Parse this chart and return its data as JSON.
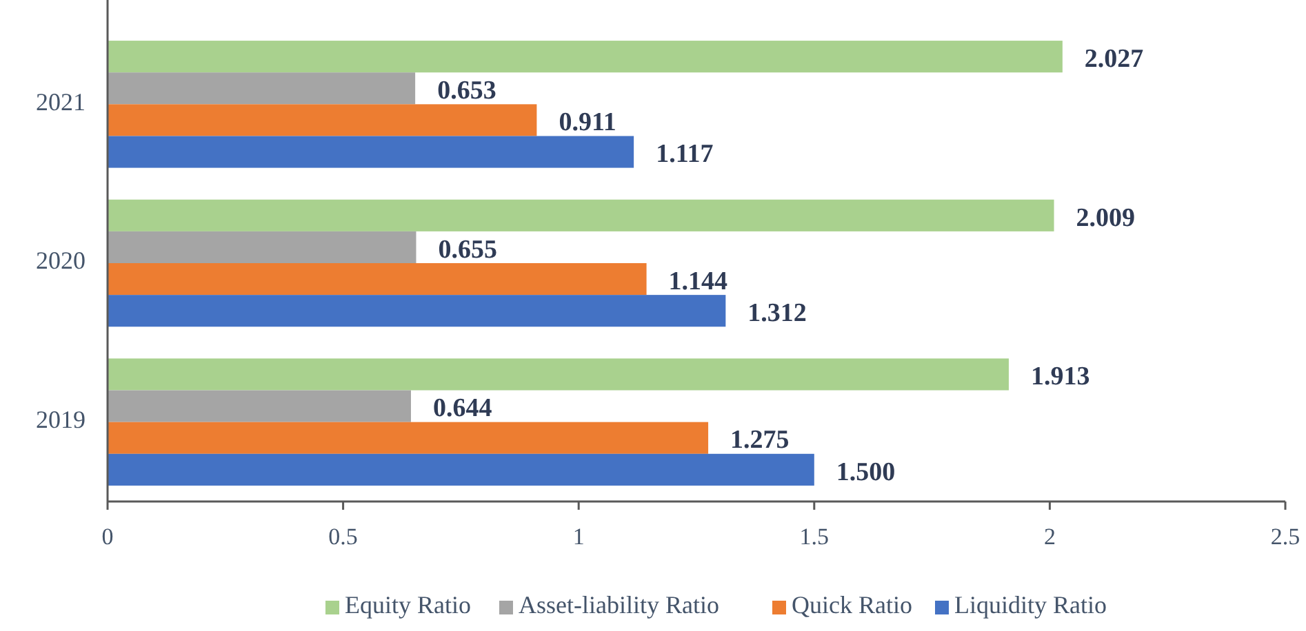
{
  "chart_data": {
    "type": "bar",
    "orientation": "horizontal",
    "categories": [
      "2021",
      "2020",
      "2019"
    ],
    "series": [
      {
        "name": "Equity Ratio",
        "color": "#a9d18e",
        "values": [
          2.027,
          2.009,
          1.913
        ],
        "value_labels": [
          "2.027",
          "2.009",
          "1.913"
        ]
      },
      {
        "name": "Asset-liability Ratio",
        "color": "#a5a5a5",
        "values": [
          0.653,
          0.655,
          0.644
        ],
        "value_labels": [
          "0.653",
          "0.655",
          "0.644"
        ]
      },
      {
        "name": "Quick Ratio",
        "color": "#ed7d31",
        "values": [
          0.911,
          1.144,
          1.275
        ],
        "value_labels": [
          "0.911",
          "1.144",
          "1.275"
        ]
      },
      {
        "name": "Liquidity Ratio",
        "color": "#4472c4",
        "values": [
          1.117,
          1.312,
          1.5
        ],
        "value_labels": [
          "1.117",
          "1.312",
          "1.500"
        ]
      }
    ],
    "xlim": [
      0,
      2.5
    ],
    "xticks": [
      0,
      0.5,
      1,
      1.5,
      2,
      2.5
    ],
    "grid": false,
    "legend": "bottom"
  }
}
